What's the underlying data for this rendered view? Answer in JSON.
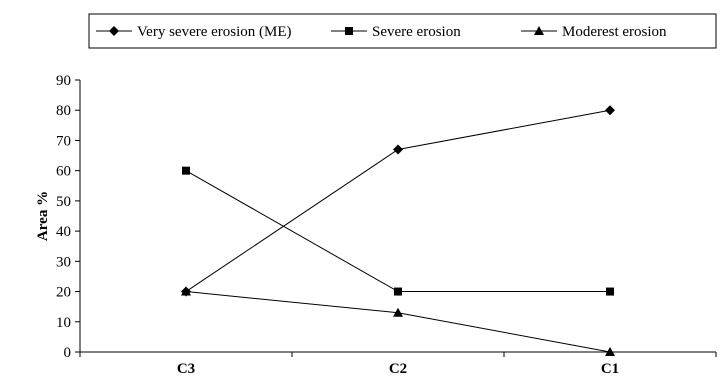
{
  "chart_data": {
    "type": "line",
    "title": "",
    "xlabel": "",
    "ylabel": "Area %",
    "categories": [
      "C3",
      "C2",
      "C1"
    ],
    "ylim": [
      0,
      90
    ],
    "yticks": [
      0,
      10,
      20,
      30,
      40,
      50,
      60,
      70,
      80,
      90
    ],
    "grid": false,
    "legend_position": "top",
    "series": [
      {
        "name": "Very severe erosion (ME)",
        "marker": "diamond",
        "values": [
          20,
          67,
          80
        ]
      },
      {
        "name": "Severe erosion",
        "marker": "square",
        "values": [
          60,
          20,
          20
        ]
      },
      {
        "name": "Moderest erosion",
        "marker": "triangle",
        "values": [
          20,
          13,
          0
        ]
      }
    ],
    "line_color": "#000000"
  }
}
